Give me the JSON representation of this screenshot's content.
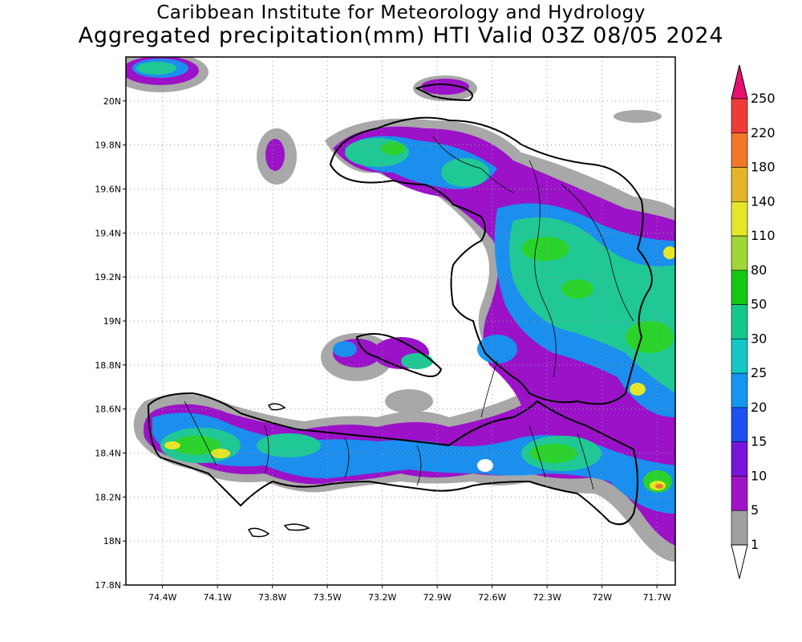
{
  "title_line1": "Caribbean Institute for Meteorology and Hydrology",
  "title_line2": "Aggregated precipitation(mm) HTI Valid 03Z 08/05 2024",
  "axes": {
    "lat_labels": [
      "20N",
      "19.8N",
      "19.6N",
      "19.4N",
      "19.2N",
      "19N",
      "18.8N",
      "18.6N",
      "18.4N",
      "18.2N",
      "18N",
      "17.8N"
    ],
    "lat_values": [
      20.0,
      19.8,
      19.6,
      19.4,
      19.2,
      19.0,
      18.8,
      18.6,
      18.4,
      18.2,
      18.0,
      17.8
    ],
    "lon_labels": [
      "74.4W",
      "74.1W",
      "73.8W",
      "73.5W",
      "73.2W",
      "72.9W",
      "72.6W",
      "72.3W",
      "72W",
      "71.7W"
    ],
    "lon_values": [
      -74.4,
      -74.1,
      -73.8,
      -73.5,
      -73.2,
      -72.9,
      -72.6,
      -72.3,
      -72.0,
      -71.7
    ],
    "lat_range": [
      17.8,
      20.2
    ],
    "lon_range": [
      -74.6,
      -71.6
    ],
    "grid": true
  },
  "colorbar": {
    "labels": [
      "250",
      "220",
      "180",
      "140",
      "110",
      "80",
      "50",
      "30",
      "25",
      "20",
      "15",
      "10",
      "5",
      "1"
    ],
    "colors": [
      "#e8106e",
      "#f03a3a",
      "#f07828",
      "#e6b428",
      "#e6e628",
      "#9fd638",
      "#14c814",
      "#14c88c",
      "#14c8c8",
      "#1496f0",
      "#1e50f0",
      "#7814dc",
      "#a014c8",
      "#a0a0a0"
    ]
  }
}
